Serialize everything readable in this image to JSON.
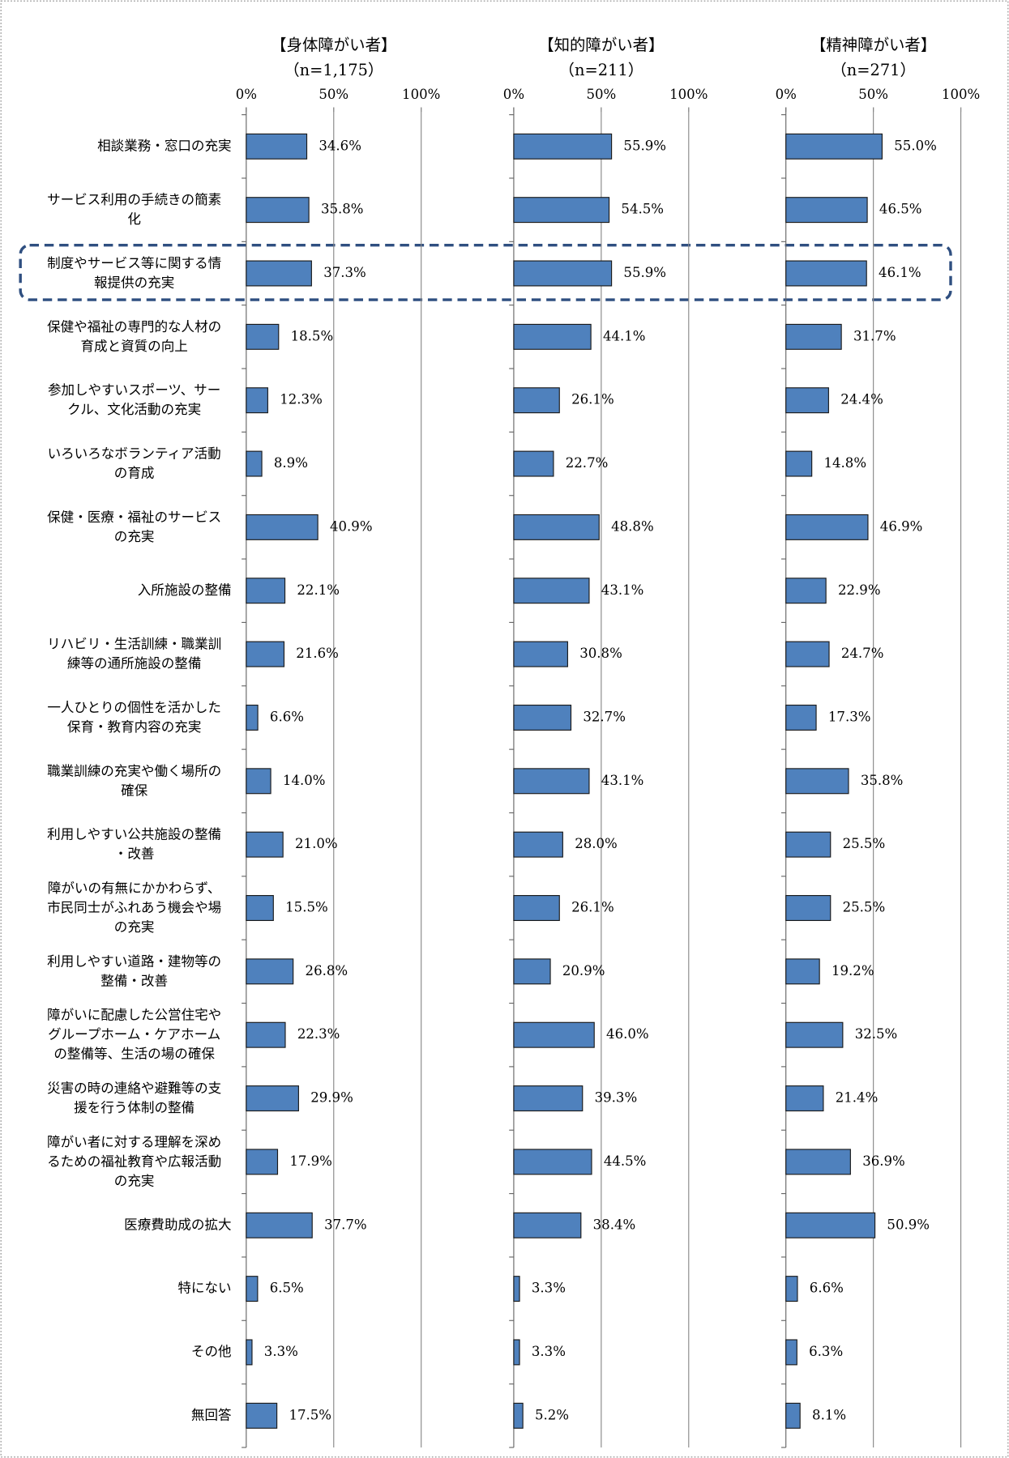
{
  "chart_data": {
    "type": "bar",
    "orientation": "horizontal",
    "color": "#4f81bd",
    "categories": [
      "相談業務・窓口の充実",
      "サービス利用の手続きの簡素化",
      "制度やサービス等に関する情報提供の充実",
      "保健や福祉の専門的な人材の育成と資質の向上",
      "参加しやすいスポーツ、サークル、文化活動の充実",
      "いろいろなボランティア活動の育成",
      "保健・医療・福祉のサービスの充実",
      "入所施設の整備",
      "リハビリ・生活訓練・職業訓練等の通所施設の整備",
      "一人ひとりの個性を活かした保育・教育内容の充実",
      "職業訓練の充実や働く場所の確保",
      "利用しやすい公共施設の整備・改善",
      "障がいの有無にかかわらず、市民同士がふれあう機会や場の充実",
      "利用しやすい道路・建物等の整備・改善",
      "障がいに配慮した公営住宅やグループホーム・ケアホームの整備等、生活の場の確保",
      "災害の時の連絡や避難等の支援を行う体制の整備",
      "障がい者に対する理解を深めるための福祉教育や広報活動の充実",
      "医療費助成の拡大",
      "特にない",
      "その他",
      "無回答"
    ],
    "series": [
      {
        "name": "【身体障がい者】",
        "subtitle": "（n=1,175）",
        "values": [
          34.6,
          35.8,
          37.3,
          18.5,
          12.3,
          8.9,
          40.9,
          22.1,
          21.6,
          6.6,
          14.0,
          21.0,
          15.5,
          26.8,
          22.3,
          29.9,
          17.9,
          37.7,
          6.5,
          3.3,
          17.5
        ],
        "value_labels": [
          "34.6%",
          "35.8%",
          "37.3%",
          "18.5%",
          "12.3%",
          "8.9%",
          "40.9%",
          "22.1%",
          "21.6%",
          "6.6%",
          "14.0%",
          "21.0%",
          "15.5%",
          "26.8%",
          "22.3%",
          "29.9%",
          "17.9%",
          "37.7%",
          "6.5%",
          "3.3%",
          "17.5%"
        ]
      },
      {
        "name": "【知的障がい者】",
        "subtitle": "（n=211）",
        "values": [
          55.9,
          54.5,
          55.9,
          44.1,
          26.1,
          22.7,
          48.8,
          43.1,
          30.8,
          32.7,
          43.1,
          28.0,
          26.1,
          20.9,
          46.0,
          39.3,
          44.5,
          38.4,
          3.3,
          3.3,
          5.2
        ],
        "value_labels": [
          "55.9%",
          "54.5%",
          "55.9%",
          "44.1%",
          "26.1%",
          "22.7%",
          "48.8%",
          "43.1%",
          "30.8%",
          "32.7%",
          "43.1%",
          "28.0%",
          "26.1%",
          "20.9%",
          "46.0%",
          "39.3%",
          "44.5%",
          "38.4%",
          "3.3%",
          "3.3%",
          "5.2%"
        ]
      },
      {
        "name": "【精神障がい者】",
        "subtitle": "（n=271）",
        "values": [
          55.0,
          46.5,
          46.1,
          31.7,
          24.4,
          14.8,
          46.9,
          22.9,
          24.7,
          17.3,
          35.8,
          25.5,
          25.5,
          19.2,
          32.5,
          21.4,
          36.9,
          50.9,
          6.6,
          6.3,
          8.1
        ],
        "value_labels": [
          "55.0%",
          "46.5%",
          "46.1%",
          "31.7%",
          "24.4%",
          "14.8%",
          "46.9%",
          "22.9%",
          "24.7%",
          "17.3%",
          "35.8%",
          "25.5%",
          "25.5%",
          "19.2%",
          "32.5%",
          "21.4%",
          "36.9%",
          "50.9%",
          "6.6%",
          "6.3%",
          "8.1%"
        ]
      }
    ],
    "xlim": [
      0,
      100
    ],
    "xticks": [
      {
        "value": 0,
        "label": "0%"
      },
      {
        "value": 50,
        "label": "50%"
      },
      {
        "value": 100,
        "label": "100%"
      }
    ],
    "grid": true
  }
}
